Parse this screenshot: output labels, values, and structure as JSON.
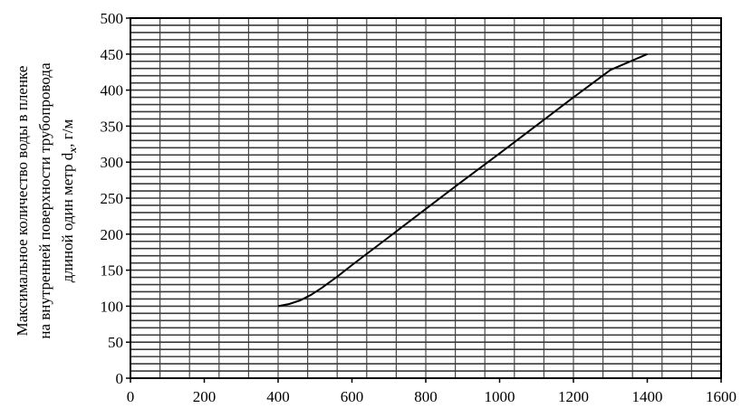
{
  "chart_data": {
    "type": "line",
    "title": "",
    "xlabel": "",
    "ylabel_lines": [
      "Максимальное количество воды в пленке",
      "на внутренней поверхности трубопровода",
      "длиной один метр d",
      "x",
      ", г/м"
    ],
    "xlim": [
      0,
      1600
    ],
    "ylim": [
      0,
      500
    ],
    "x_ticks": [
      0,
      200,
      400,
      600,
      800,
      1000,
      1200,
      1400,
      1600
    ],
    "y_ticks": [
      0,
      50,
      100,
      150,
      200,
      250,
      300,
      350,
      400,
      450,
      500
    ],
    "x_tick_labels": [
      "0",
      "200",
      "400",
      "600",
      "800",
      "1000",
      "1200",
      "1400",
      "1600"
    ],
    "y_tick_labels": [
      "0",
      "50",
      "100",
      "150",
      "200",
      "250",
      "300",
      "350",
      "400",
      "450",
      "500"
    ],
    "grid": true,
    "legend": "none",
    "series": [
      {
        "color": "#000000",
        "x": [
          400,
          430,
          460,
          490,
          520,
          560,
          600,
          700,
          800,
          900,
          1000,
          1100,
          1200,
          1300,
          1400
        ],
        "y": [
          100,
          103,
          108,
          116,
          126,
          141,
          157,
          196,
          235,
          274,
          312,
          351,
          390,
          428,
          450
        ]
      }
    ]
  }
}
